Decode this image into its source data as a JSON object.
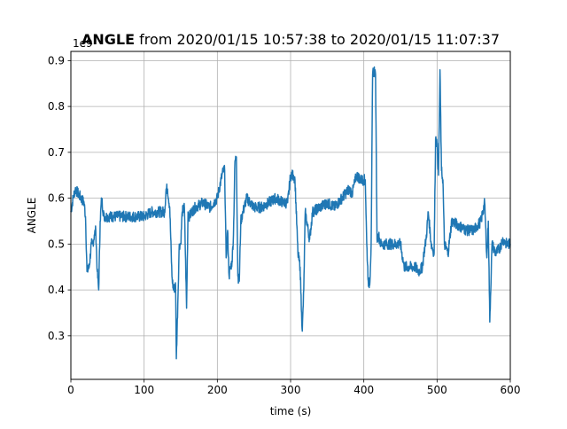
{
  "chart_data": {
    "type": "line",
    "title": {
      "bold": "ANGLE",
      "rest": " from 2020/01/15 10:57:38 to 2020/01/15 11:07:37"
    },
    "xlabel": "time (s)",
    "ylabel": "ANGLE",
    "offset_text": "1e9",
    "xlim": [
      0,
      600
    ],
    "ylim": [
      0.205,
      0.92
    ],
    "xticks": [
      0,
      100,
      200,
      300,
      400,
      500,
      600
    ],
    "yticks": [
      0.3,
      0.4,
      0.5,
      0.6,
      0.7,
      0.8,
      0.9
    ],
    "grid": true,
    "line_color": "#1f77b4",
    "series": [
      {
        "x": [
          0,
          3,
          6,
          10,
          14,
          18,
          20,
          22,
          25,
          28,
          30,
          32,
          34,
          36,
          38,
          40,
          42,
          45,
          50,
          60,
          70,
          80,
          90,
          100,
          110,
          120,
          128,
          130,
          132,
          135,
          138,
          140,
          143,
          144,
          146,
          148,
          150,
          152,
          155,
          158,
          160,
          162,
          165,
          170,
          180,
          190,
          200,
          205,
          208,
          210,
          212,
          214,
          216,
          218,
          220,
          222,
          224,
          226,
          228,
          230,
          232,
          235,
          240,
          250,
          260,
          270,
          280,
          290,
          296,
          300,
          304,
          306,
          310,
          313,
          315,
          316,
          318,
          320,
          323,
          326,
          330,
          340,
          350,
          360,
          370,
          380,
          384,
          390,
          396,
          400,
          402,
          404,
          406,
          408,
          410,
          412,
          414,
          416,
          418,
          420,
          423,
          426,
          430,
          440,
          450,
          455,
          460,
          470,
          475,
          480,
          482,
          485,
          488,
          492,
          496,
          498,
          500,
          502,
          504,
          506,
          508,
          510,
          515,
          520,
          530,
          540,
          550,
          555,
          560,
          565,
          568,
          570,
          572,
          575,
          580,
          585,
          590,
          595,
          600
        ],
        "values": [
          0.57,
          0.6,
          0.62,
          0.61,
          0.6,
          0.59,
          0.56,
          0.44,
          0.45,
          0.5,
          0.5,
          0.52,
          0.53,
          0.44,
          0.4,
          0.55,
          0.6,
          0.56,
          0.56,
          0.56,
          0.56,
          0.56,
          0.56,
          0.56,
          0.57,
          0.57,
          0.57,
          0.62,
          0.62,
          0.58,
          0.43,
          0.4,
          0.41,
          0.25,
          0.37,
          0.5,
          0.5,
          0.57,
          0.58,
          0.36,
          0.57,
          0.56,
          0.57,
          0.58,
          0.59,
          0.58,
          0.6,
          0.64,
          0.66,
          0.66,
          0.47,
          0.53,
          0.43,
          0.45,
          0.46,
          0.52,
          0.68,
          0.69,
          0.43,
          0.42,
          0.55,
          0.57,
          0.6,
          0.58,
          0.58,
          0.59,
          0.6,
          0.59,
          0.59,
          0.65,
          0.65,
          0.64,
          0.48,
          0.45,
          0.35,
          0.31,
          0.4,
          0.57,
          0.54,
          0.51,
          0.57,
          0.58,
          0.59,
          0.58,
          0.6,
          0.62,
          0.61,
          0.65,
          0.64,
          0.64,
          0.64,
          0.5,
          0.42,
          0.41,
          0.5,
          0.87,
          0.88,
          0.87,
          0.51,
          0.52,
          0.5,
          0.5,
          0.5,
          0.5,
          0.5,
          0.45,
          0.45,
          0.45,
          0.44,
          0.45,
          0.48,
          0.51,
          0.57,
          0.5,
          0.48,
          0.73,
          0.72,
          0.65,
          0.88,
          0.66,
          0.64,
          0.5,
          0.48,
          0.55,
          0.54,
          0.53,
          0.53,
          0.54,
          0.55,
          0.59,
          0.47,
          0.55,
          0.33,
          0.5,
          0.48,
          0.49,
          0.51,
          0.5,
          0.5
        ]
      }
    ]
  }
}
